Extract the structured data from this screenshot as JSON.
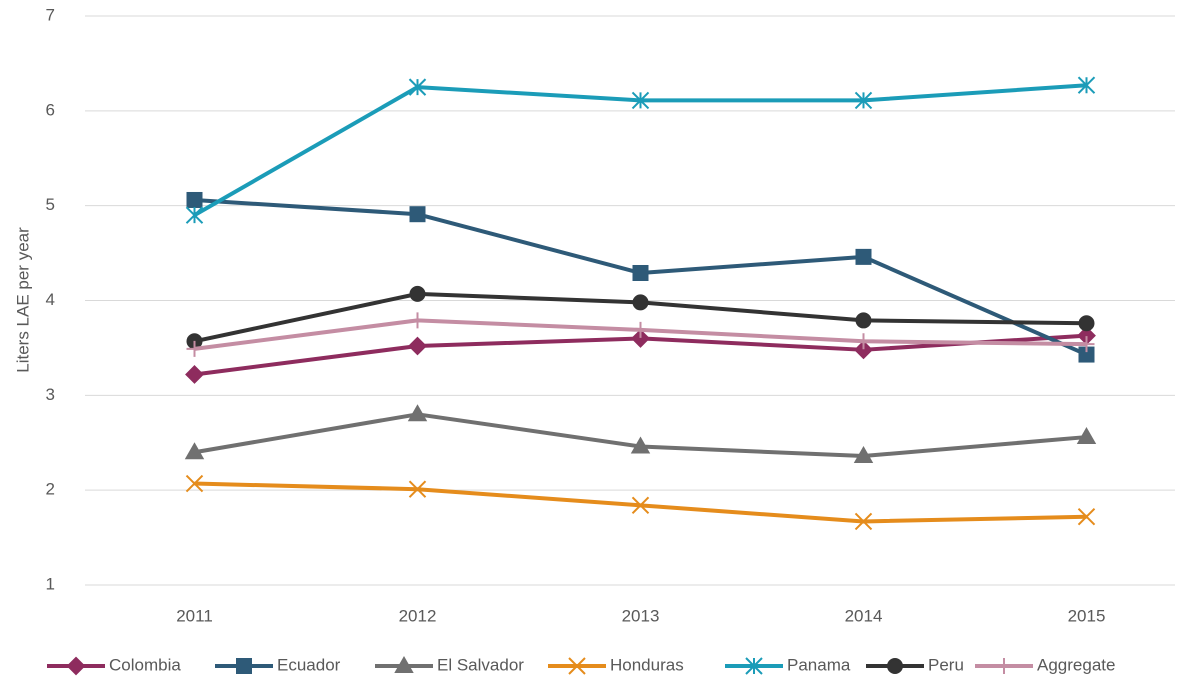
{
  "chart_data": {
    "type": "line",
    "y_label": "Liters LAE per year",
    "categories": [
      "2011",
      "2012",
      "2013",
      "2014",
      "2015"
    ],
    "series": [
      {
        "name": "Colombia",
        "color": "#8e2c5e",
        "marker": "diamond",
        "values": [
          3.22,
          3.52,
          3.6,
          3.48,
          3.63
        ]
      },
      {
        "name": "Ecuador",
        "color": "#2e5a78",
        "marker": "square",
        "values": [
          5.06,
          4.91,
          4.29,
          4.46,
          3.43
        ]
      },
      {
        "name": "El Salvador",
        "color": "#707070",
        "marker": "triangle",
        "values": [
          2.4,
          2.8,
          2.46,
          2.36,
          2.56
        ]
      },
      {
        "name": "Honduras",
        "color": "#e58c1c",
        "marker": "x",
        "values": [
          2.07,
          2.01,
          1.84,
          1.67,
          1.72
        ]
      },
      {
        "name": "Panama",
        "color": "#1b9cb8",
        "marker": "asterisk",
        "values": [
          4.9,
          6.25,
          6.11,
          6.11,
          6.27
        ]
      },
      {
        "name": "Peru",
        "color": "#333333",
        "marker": "circle",
        "values": [
          3.57,
          4.07,
          3.98,
          3.79,
          3.76
        ]
      },
      {
        "name": "Aggregate",
        "color": "#c48da3",
        "marker": "plus",
        "values": [
          3.49,
          3.79,
          3.69,
          3.57,
          3.54
        ]
      }
    ],
    "ylim": [
      1,
      7
    ],
    "yticks": [
      1,
      2,
      3,
      4,
      5,
      6,
      7
    ],
    "grid": true,
    "legend": "bottom"
  }
}
